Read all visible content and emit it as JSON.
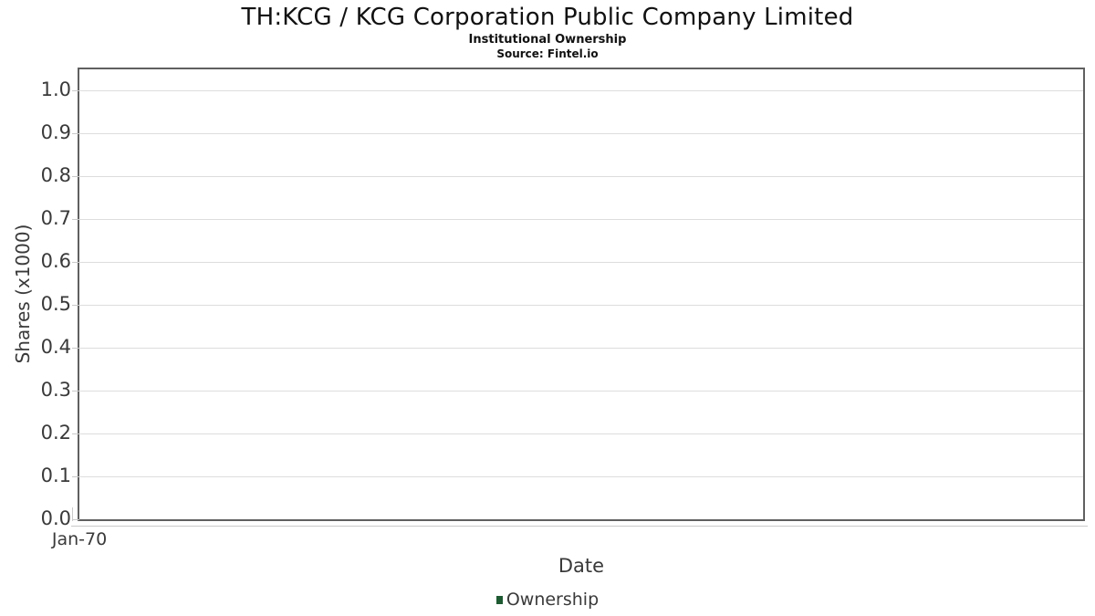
{
  "header": {
    "title": "TH:KCG / KCG Corporation Public Company Limited",
    "subtitle": "Institutional Ownership",
    "source": "Source: Fintel.io"
  },
  "chart_data": {
    "type": "line",
    "title": "TH:KCG / KCG Corporation Public Company Limited",
    "subtitle": "Institutional Ownership",
    "source": "Source: Fintel.io",
    "xlabel": "Date",
    "ylabel": "Shares (x1000)",
    "ylim": [
      0,
      1.05
    ],
    "grid": true,
    "y_ticks": [
      {
        "label": "0.0",
        "value": 0.0
      },
      {
        "label": "0.1",
        "value": 0.1
      },
      {
        "label": "0.2",
        "value": 0.2
      },
      {
        "label": "0.3",
        "value": 0.3
      },
      {
        "label": "0.4",
        "value": 0.4
      },
      {
        "label": "0.5",
        "value": 0.5
      },
      {
        "label": "0.6",
        "value": 0.6
      },
      {
        "label": "0.7",
        "value": 0.7
      },
      {
        "label": "0.8",
        "value": 0.8
      },
      {
        "label": "0.9",
        "value": 0.9
      },
      {
        "label": "1.0",
        "value": 1.0
      }
    ],
    "x_ticks": [
      {
        "label": "Jan-70",
        "position": 0
      }
    ],
    "series": [
      {
        "name": "Ownership",
        "color": "#1e5a32",
        "values": []
      }
    ],
    "legend": {
      "position": "bottom",
      "entries": [
        {
          "label": "Ownership",
          "color": "#1e5a32"
        }
      ]
    }
  },
  "colors": {
    "grid": "#dddddd",
    "axis_border": "#606060",
    "axis_line": "#c9c9c9",
    "tick_text": "#3a3a3a",
    "title_text": "#111111",
    "legend_marker": "#1e5a32"
  }
}
